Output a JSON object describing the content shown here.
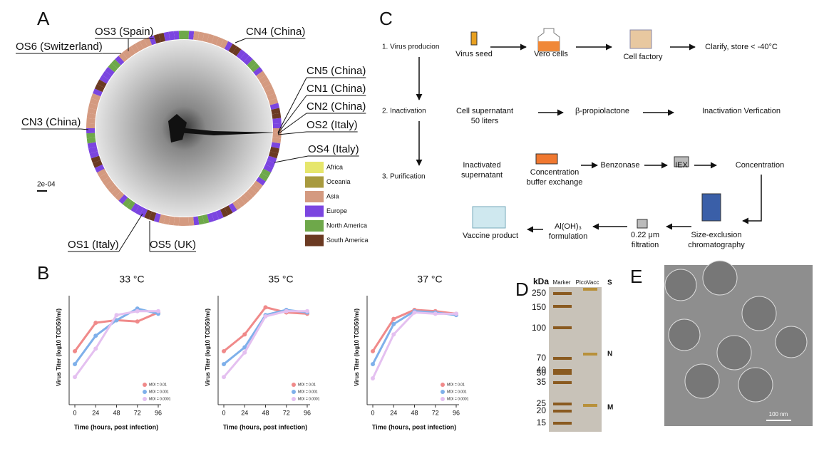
{
  "panel_labels": [
    "A",
    "B",
    "C",
    "D",
    "E"
  ],
  "tree": {
    "labels": [
      "OS3 (Spain)",
      "OS6 (Switzerland)",
      "CN4 (China)",
      "CN5 (China)",
      "CN1 (China)",
      "CN2 (China)",
      "OS2 (Italy)",
      "CN3 (China)",
      "OS4 (Italy)",
      "OS1 (Italy)",
      "OS5 (UK)"
    ],
    "scale": "2e-04",
    "legend": [
      {
        "name": "Africa",
        "color": "#e6e66c"
      },
      {
        "name": "Oceania",
        "color": "#a89a3e"
      },
      {
        "name": "Asia",
        "color": "#d49a80"
      },
      {
        "name": "Europe",
        "color": "#7b45e0"
      },
      {
        "name": "North America",
        "color": "#6ea84a"
      },
      {
        "name": "South America",
        "color": "#6b3a22"
      }
    ]
  },
  "chart_data": [
    {
      "type": "line",
      "title": "33 °C",
      "x_label": "Time (hours, post infection)",
      "y_label": "Virus Titer (log10 TCID50/ml)",
      "x": [
        0,
        24,
        48,
        72,
        96
      ],
      "xlim": [
        0,
        96
      ],
      "xticks": [
        0,
        24,
        48,
        72,
        96
      ],
      "ylim": [
        0,
        8
      ],
      "series": [
        {
          "name": "MOI = 0.01",
          "color": "#f08a8a",
          "values": [
            3.7,
            5.9,
            6.1,
            6.0,
            6.7
          ]
        },
        {
          "name": "MOI = 0.001",
          "color": "#7fb0ea",
          "values": [
            2.7,
            4.9,
            6.1,
            7.0,
            6.6
          ]
        },
        {
          "name": "MOI = 0.0001",
          "color": "#e4c0f0",
          "values": [
            1.7,
            3.9,
            6.5,
            6.8,
            6.8
          ]
        }
      ]
    },
    {
      "type": "line",
      "title": "35 °C",
      "x_label": "Time (hours, post infection)",
      "y_label": "Virus Titer (log10 TCID50/ml)",
      "x": [
        0,
        24,
        48,
        72,
        96
      ],
      "xlim": [
        0,
        96
      ],
      "xticks": [
        0,
        24,
        48,
        72,
        96
      ],
      "ylim": [
        0,
        8
      ],
      "series": [
        {
          "name": "MOI = 0.01",
          "color": "#f08a8a",
          "values": [
            3.7,
            5.0,
            7.1,
            6.7,
            6.6
          ]
        },
        {
          "name": "MOI = 0.001",
          "color": "#7fb0ea",
          "values": [
            2.7,
            4.0,
            6.5,
            6.9,
            6.7
          ]
        },
        {
          "name": "MOI = 0.0001",
          "color": "#e4c0f0",
          "values": [
            1.7,
            3.6,
            6.4,
            6.8,
            6.8
          ]
        }
      ]
    },
    {
      "type": "line",
      "title": "37 °C",
      "x_label": "Time (hours, post infection)",
      "y_label": "Virus Titer (log10 TCID50/ml)",
      "x": [
        0,
        24,
        48,
        72,
        96
      ],
      "xlim": [
        0,
        96
      ],
      "xticks": [
        0,
        24,
        48,
        72,
        96
      ],
      "ylim": [
        0,
        8
      ],
      "series": [
        {
          "name": "MOI = 0.01",
          "color": "#f08a8a",
          "values": [
            3.7,
            6.2,
            6.9,
            6.8,
            6.6
          ]
        },
        {
          "name": "MOI = 0.001",
          "color": "#7fb0ea",
          "values": [
            2.7,
            5.8,
            6.8,
            6.7,
            6.5
          ]
        },
        {
          "name": "MOI = 0.0001",
          "color": "#e4c0f0",
          "values": [
            1.6,
            5.0,
            6.7,
            6.6,
            6.6
          ]
        }
      ]
    }
  ],
  "flow": {
    "steps": [
      "1. Virus producion",
      "2. Inactivation",
      "3. Purification"
    ],
    "nodes": [
      {
        "lines": [
          "Virus seed"
        ]
      },
      {
        "lines": [
          "Vero cells"
        ]
      },
      {
        "lines": [
          "Cell factory"
        ]
      },
      {
        "lines": [
          "Clarify, store < -40°C"
        ]
      },
      {
        "lines": [
          "Cell supernatant",
          "50 liters"
        ]
      },
      {
        "lines": [
          "β-propiolactone"
        ]
      },
      {
        "lines": [
          "Inactivation Verfication"
        ]
      },
      {
        "lines": [
          "Inactivated",
          "supernatant"
        ]
      },
      {
        "lines": [
          "Concentration",
          "buffer exchange"
        ]
      },
      {
        "lines": [
          "Benzonase"
        ]
      },
      {
        "lines": [
          "IEX"
        ]
      },
      {
        "lines": [
          "Concentration"
        ]
      },
      {
        "lines": [
          "Size-exclusion",
          "chromatography"
        ]
      },
      {
        "lines": [
          "0.22 μm",
          "filtration"
        ]
      },
      {
        "lines": [
          "Al(OH)₃",
          "formulation"
        ]
      },
      {
        "lines": [
          "Vaccine product"
        ]
      }
    ]
  },
  "gel": {
    "unit": "kDa",
    "lanes": [
      "Marker",
      "PicoVacc"
    ],
    "markers": [
      250,
      150,
      100,
      70,
      50,
      40,
      35,
      25,
      20,
      15
    ],
    "bands": [
      "S",
      "N",
      "M"
    ]
  },
  "em": {
    "scale": "100 nm"
  }
}
